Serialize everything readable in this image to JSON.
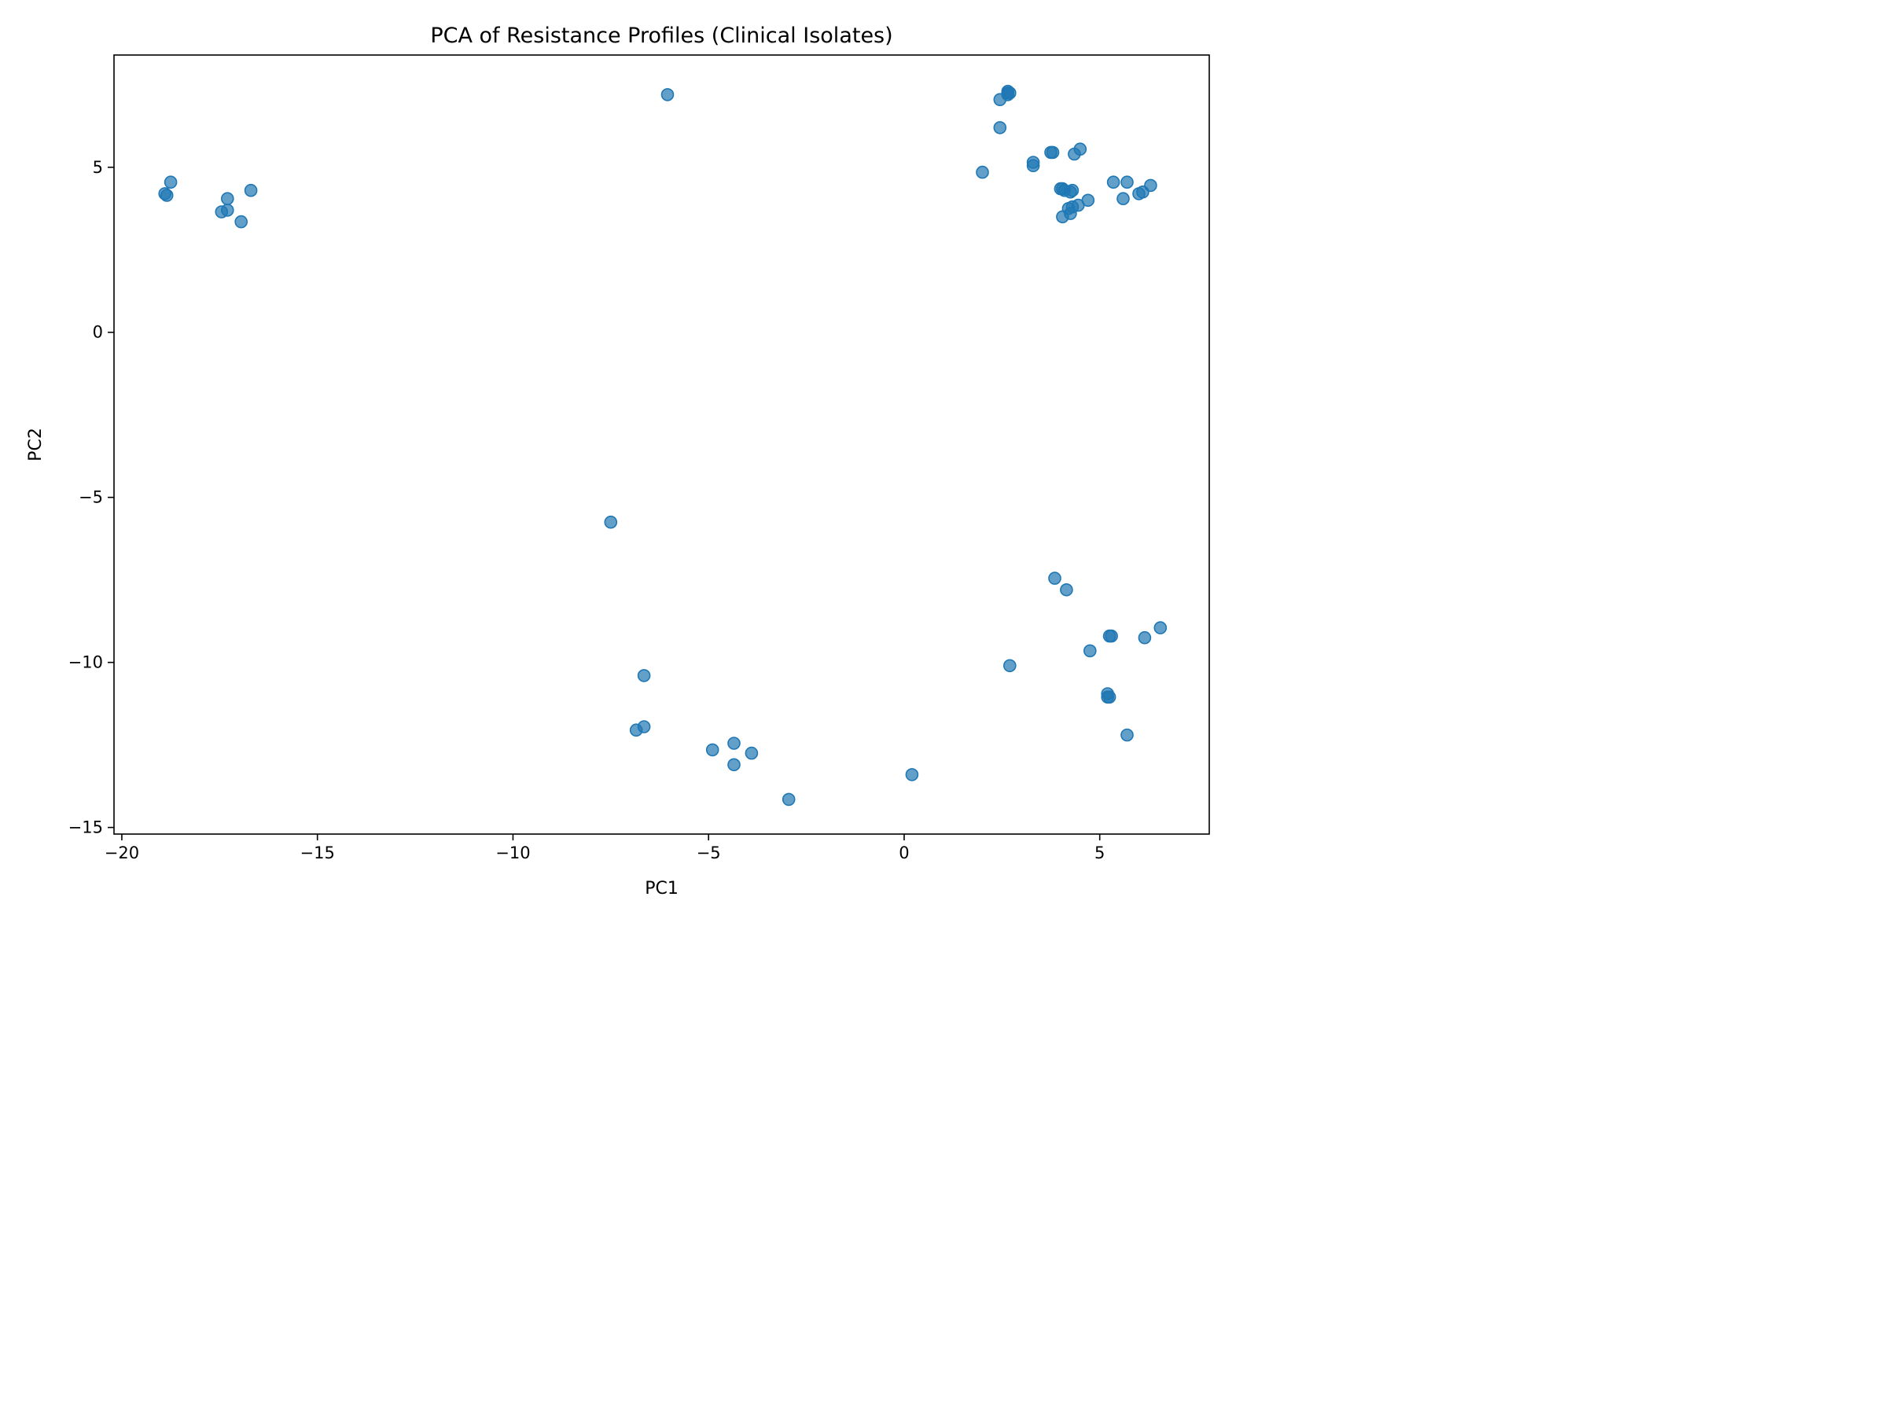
{
  "chart_data": {
    "type": "scatter",
    "title": "PCA of Resistance Profiles (Clinical Isolates)",
    "xlabel": "PC1",
    "ylabel": "PC2",
    "xlim": [
      -20.2,
      7.8
    ],
    "ylim": [
      -15.2,
      8.4
    ],
    "x_ticks": [
      {
        "value": -20,
        "label": "−20"
      },
      {
        "value": -15,
        "label": "−15"
      },
      {
        "value": -10,
        "label": "−10"
      },
      {
        "value": -5,
        "label": "−5"
      },
      {
        "value": 0,
        "label": "0"
      },
      {
        "value": 5,
        "label": "5"
      }
    ],
    "y_ticks": [
      {
        "value": -15,
        "label": "−15"
      },
      {
        "value": -10,
        "label": "−10"
      },
      {
        "value": -5,
        "label": "−5"
      },
      {
        "value": 0,
        "label": "0"
      },
      {
        "value": 5,
        "label": "5"
      }
    ],
    "grid": false,
    "legend": "none",
    "point_color": "#1f77b4",
    "point_opacity": 0.7,
    "series": [
      {
        "points": [
          [
            -18.9,
            4.2
          ],
          [
            -18.85,
            4.15
          ],
          [
            -18.75,
            4.55
          ],
          [
            -17.3,
            4.05
          ],
          [
            -17.45,
            3.65
          ],
          [
            -17.3,
            3.7
          ],
          [
            -16.95,
            3.35
          ],
          [
            -16.7,
            4.3
          ],
          [
            -6.05,
            7.2
          ],
          [
            -7.5,
            -5.75
          ],
          [
            -6.65,
            -10.4
          ],
          [
            -6.65,
            -11.95
          ],
          [
            -6.85,
            -12.05
          ],
          [
            -4.9,
            -12.65
          ],
          [
            -4.35,
            -12.45
          ],
          [
            -3.9,
            -12.75
          ],
          [
            -4.35,
            -13.1
          ],
          [
            -2.95,
            -14.15
          ],
          [
            0.2,
            -13.4
          ],
          [
            2.0,
            4.85
          ],
          [
            2.45,
            6.2
          ],
          [
            2.45,
            7.05
          ],
          [
            2.65,
            7.2
          ],
          [
            2.65,
            7.25
          ],
          [
            2.65,
            7.3
          ],
          [
            2.7,
            7.25
          ],
          [
            3.3,
            5.15
          ],
          [
            3.3,
            5.05
          ],
          [
            3.75,
            5.45
          ],
          [
            3.8,
            5.45
          ],
          [
            4.0,
            4.35
          ],
          [
            4.05,
            4.35
          ],
          [
            4.1,
            4.3
          ],
          [
            4.25,
            4.25
          ],
          [
            4.3,
            4.3
          ],
          [
            4.35,
            5.4
          ],
          [
            4.5,
            5.55
          ],
          [
            4.2,
            3.75
          ],
          [
            4.3,
            3.8
          ],
          [
            4.45,
            3.85
          ],
          [
            4.05,
            3.5
          ],
          [
            4.25,
            3.6
          ],
          [
            4.7,
            4.0
          ],
          [
            5.35,
            4.55
          ],
          [
            5.7,
            4.55
          ],
          [
            5.6,
            4.05
          ],
          [
            6.0,
            4.2
          ],
          [
            6.1,
            4.25
          ],
          [
            6.3,
            4.45
          ],
          [
            3.85,
            -7.45
          ],
          [
            4.15,
            -7.8
          ],
          [
            5.25,
            -9.2
          ],
          [
            5.3,
            -9.2
          ],
          [
            6.55,
            -8.95
          ],
          [
            6.15,
            -9.25
          ],
          [
            4.75,
            -9.65
          ],
          [
            2.7,
            -10.1
          ],
          [
            5.2,
            -10.95
          ],
          [
            5.2,
            -11.05
          ],
          [
            5.25,
            -11.05
          ],
          [
            5.7,
            -12.2
          ]
        ]
      }
    ]
  }
}
